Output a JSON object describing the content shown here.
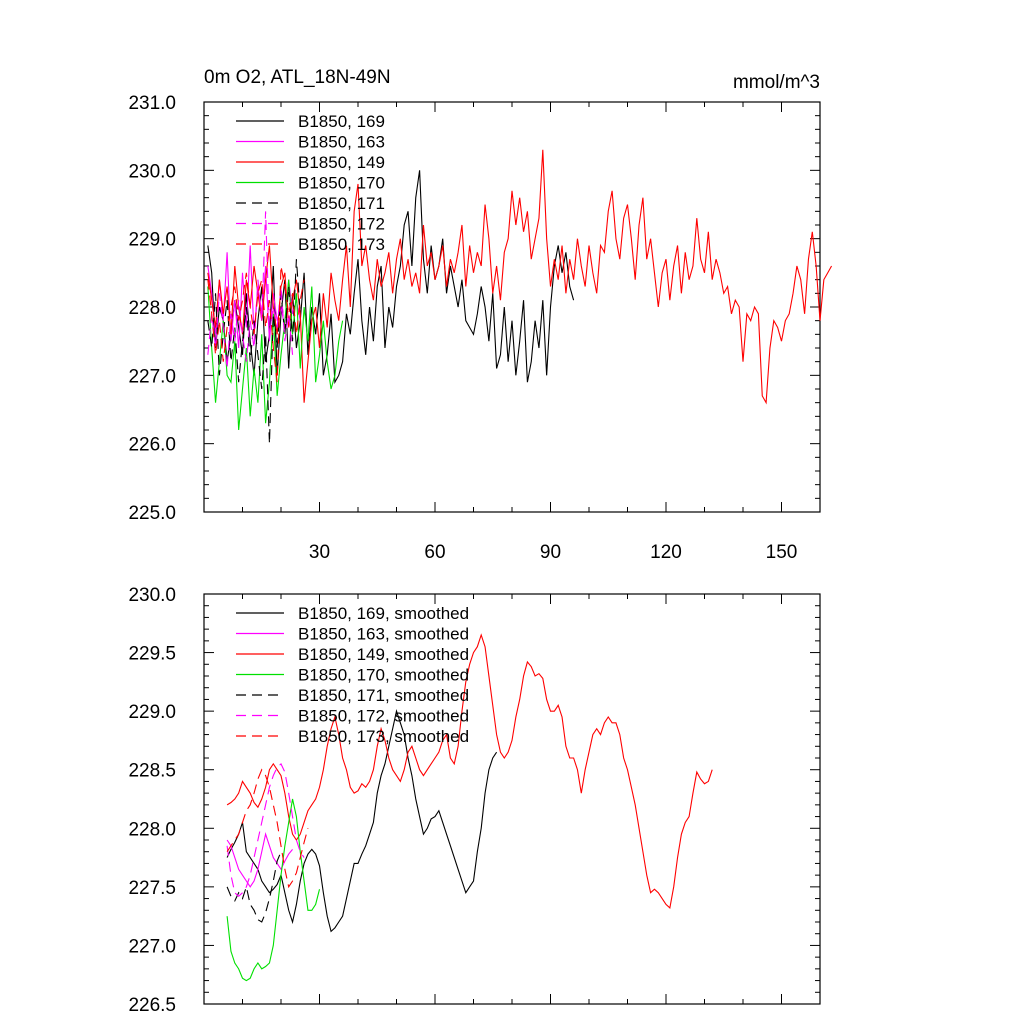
{
  "chart_data": [
    {
      "type": "line",
      "title": "0m O2, ATL_18N-49N",
      "unit_label": "mmol/m^3",
      "xlim": [
        0,
        160
      ],
      "ylim": [
        225.0,
        231.0
      ],
      "x_ticks": [
        30,
        60,
        90,
        120,
        150
      ],
      "x_tick_labels": [
        "30",
        "60",
        "90",
        "120",
        "150"
      ],
      "y_ticks": [
        225.0,
        226.0,
        227.0,
        228.0,
        229.0,
        230.0,
        231.0
      ],
      "y_tick_labels": [
        "225.0",
        "226.0",
        "227.0",
        "228.0",
        "229.0",
        "230.0",
        "231.0"
      ],
      "legend_position": "top-left",
      "series": [
        {
          "name": "B1850, 169",
          "color": "#000000",
          "dash": "solid",
          "x_start": 0,
          "values": [
            228.9,
            228.5,
            227.4,
            228.0,
            227.8,
            227.2,
            227.6,
            228.1,
            227.7,
            227.3,
            228.2,
            227.5,
            227.0,
            227.8,
            228.3,
            227.2,
            227.6,
            228.6,
            227.0,
            227.9,
            228.4,
            227.1,
            228.2,
            227.4,
            227.8,
            228.5,
            227.3,
            228.0,
            227.6,
            228.2,
            227.0,
            227.3,
            227.9,
            226.9,
            227.0,
            227.2,
            227.9,
            227.6,
            228.2,
            228.7,
            227.8,
            227.3,
            228.0,
            227.5,
            228.3,
            228.6,
            227.4,
            228.0,
            227.7,
            228.3,
            228.6,
            229.2,
            229.4,
            228.6,
            229.6,
            230.0,
            228.7,
            228.2,
            228.9,
            228.4,
            228.6,
            229.0,
            228.2,
            228.6,
            228.3,
            228.0,
            228.4,
            227.8,
            227.7,
            227.6,
            227.9,
            228.3,
            228.0,
            227.5,
            228.2,
            227.1,
            227.3,
            228.0,
            227.2,
            227.8,
            227.0,
            227.5,
            228.1,
            226.9,
            227.2,
            227.8,
            227.4,
            228.1,
            227.0,
            228.0,
            228.6,
            228.9,
            228.5,
            228.8,
            228.3,
            228.1
          ]
        },
        {
          "name": "B1850, 163",
          "color": "#ff00ff",
          "dash": "solid",
          "x_start": 0,
          "values": [
            228.6,
            228.2,
            227.6,
            228.4,
            227.8,
            228.8,
            227.5,
            228.1,
            227.4,
            228.5,
            227.7,
            228.9,
            227.6,
            228.3,
            227.9,
            228.6,
            227.5,
            228.2,
            227.8,
            228.0,
            227.7,
            228.4,
            227.9,
            228.1,
            227.8
          ]
        },
        {
          "name": "B1850, 149",
          "color": "#ff0000",
          "dash": "solid",
          "x_start": 0,
          "values": [
            228.5,
            228.1,
            227.7,
            228.4,
            227.9,
            228.3,
            227.6,
            228.6,
            228.0,
            227.6,
            228.4,
            228.0,
            228.6,
            228.2,
            227.8,
            228.4,
            228.9,
            228.0,
            227.6,
            228.3,
            228.5,
            227.7,
            228.1,
            228.4,
            227.9,
            226.6,
            227.2,
            227.8,
            228.0,
            227.4,
            228.2,
            227.7,
            228.5,
            228.1,
            227.8,
            228.4,
            228.9,
            228.0,
            229.4,
            229.8,
            228.6,
            228.9,
            228.4,
            228.1,
            228.7,
            228.3,
            228.5,
            228.8,
            228.2,
            228.7,
            229.0,
            228.4,
            228.7,
            228.3,
            228.5,
            228.2,
            229.2,
            228.6,
            228.8,
            228.4,
            228.6,
            228.9,
            228.3,
            228.7,
            228.5,
            228.8,
            229.2,
            228.3,
            228.9,
            228.5,
            228.8,
            228.6,
            229.5,
            229.0,
            228.2,
            228.6,
            228.1,
            228.8,
            229.0,
            229.7,
            229.2,
            229.6,
            229.1,
            229.4,
            228.7,
            229.0,
            229.3,
            230.3,
            229.0,
            228.3,
            228.7,
            228.4,
            228.9,
            228.2,
            228.7,
            228.4,
            229.0,
            228.6,
            228.3,
            228.9,
            228.5,
            228.2,
            228.9,
            228.8,
            229.4,
            229.7,
            229.0,
            228.7,
            229.3,
            229.5,
            229.0,
            228.4,
            229.2,
            229.6,
            228.7,
            229.0,
            228.5,
            228.0,
            228.5,
            228.7,
            228.1,
            228.6,
            228.9,
            228.2,
            228.8,
            228.4,
            228.6,
            229.3,
            228.7,
            228.5,
            229.1,
            228.4,
            228.7,
            228.5,
            228.2,
            228.3,
            227.9,
            228.1,
            228.0,
            227.2,
            227.9,
            227.8,
            228.0,
            227.9,
            226.7,
            226.6,
            227.4,
            227.8,
            227.7,
            227.5,
            227.8,
            227.9,
            228.2,
            228.6,
            228.4,
            227.9,
            228.7,
            229.1,
            228.6,
            227.8,
            228.4,
            228.5,
            228.6
          ]
        },
        {
          "name": "B1850, 170",
          "color": "#00e000",
          "dash": "solid",
          "x_start": 0,
          "values": [
            228.3,
            227.4,
            226.6,
            227.2,
            227.8,
            227.0,
            226.9,
            227.5,
            226.2,
            226.8,
            227.4,
            226.4,
            227.1,
            226.6,
            227.6,
            226.3,
            226.9,
            227.9,
            226.7,
            227.3,
            227.8,
            228.4,
            227.6,
            228.2,
            227.1,
            228.0,
            227.5,
            228.3,
            226.9,
            227.3,
            227.8,
            227.2,
            226.8,
            227.0,
            227.5,
            227.8
          ]
        },
        {
          "name": "B1850, 171",
          "color": "#000000",
          "dash": "dashed",
          "x_start": 0,
          "values": [
            227.8,
            227.4,
            228.2,
            227.0,
            227.6,
            228.1,
            227.2,
            227.7,
            226.9,
            227.5,
            228.0,
            227.2,
            227.8,
            227.3,
            226.8,
            227.6,
            226.0,
            227.9,
            227.4,
            228.2,
            227.6,
            228.3,
            227.5,
            228.7,
            227.9
          ]
        },
        {
          "name": "B1850, 172",
          "color": "#ff00ff",
          "dash": "dashed",
          "x_start": 0,
          "values": [
            227.3,
            227.9,
            227.4,
            228.2,
            227.7,
            227.1,
            227.9,
            227.5,
            228.1,
            227.6,
            227.2,
            227.8,
            227.4,
            228.4,
            227.8,
            229.4,
            227.6,
            228.0,
            227.7,
            228.3,
            227.5,
            227.9,
            227.3
          ]
        },
        {
          "name": "B1850, 173",
          "color": "#ff0000",
          "dash": "dashed",
          "x_start": 0,
          "values": [
            228.4,
            227.9,
            227.3,
            227.8,
            227.2,
            227.7,
            228.0,
            228.3,
            227.8,
            228.1,
            228.5,
            228.0,
            227.6,
            228.2,
            228.4,
            227.7,
            228.1,
            227.4,
            226.9,
            228.6,
            228.3,
            227.9,
            228.2,
            227.6,
            228.1,
            228.4
          ]
        }
      ]
    },
    {
      "type": "line",
      "title": "",
      "xlim": [
        0,
        160
      ],
      "ylim": [
        226.5,
        230.0
      ],
      "x_ticks": [
        30,
        60,
        90,
        120,
        150
      ],
      "y_ticks": [
        226.5,
        227.0,
        227.5,
        228.0,
        228.5,
        229.0,
        229.5,
        230.0
      ],
      "y_tick_labels": [
        "226.5",
        "227.0",
        "227.5",
        "228.0",
        "228.5",
        "229.0",
        "229.5",
        "230.0"
      ],
      "legend_position": "top-left",
      "series": [
        {
          "name": "B1850, 169, smoothed",
          "color": "#000000",
          "dash": "solid",
          "x_start": 5,
          "values": [
            227.75,
            227.82,
            227.88,
            227.95,
            228.05,
            227.8,
            227.75,
            227.7,
            227.65,
            227.55,
            227.5,
            227.45,
            227.48,
            227.52,
            227.6,
            227.45,
            227.3,
            227.2,
            227.35,
            227.55,
            227.7,
            227.78,
            227.82,
            227.78,
            227.68,
            227.45,
            227.25,
            227.12,
            227.15,
            227.2,
            227.25,
            227.4,
            227.55,
            227.7,
            227.7,
            227.78,
            227.85,
            227.95,
            228.05,
            228.3,
            228.45,
            228.55,
            228.7,
            228.85,
            229.0,
            228.9,
            228.8,
            228.6,
            228.45,
            228.25,
            228.1,
            227.95,
            228.0,
            228.08,
            228.1,
            228.15,
            228.05,
            227.95,
            227.85,
            227.75,
            227.65,
            227.55,
            227.45,
            227.5,
            227.55,
            227.8,
            228.0,
            228.3,
            228.5,
            228.6,
            228.65
          ]
        },
        {
          "name": "B1850, 163, smoothed",
          "color": "#ff00ff",
          "dash": "solid",
          "x_start": 5,
          "values": [
            227.9,
            227.85,
            227.75,
            227.65,
            227.6,
            227.55,
            227.5,
            227.55,
            227.65,
            227.8,
            227.95,
            227.85,
            227.75,
            227.7,
            227.65,
            227.72,
            227.78,
            227.82
          ]
        },
        {
          "name": "B1850, 149, smoothed",
          "color": "#ff0000",
          "dash": "solid",
          "x_start": 5,
          "values": [
            228.2,
            228.22,
            228.25,
            228.3,
            228.4,
            228.35,
            228.3,
            228.22,
            228.18,
            228.25,
            228.35,
            228.5,
            228.55,
            228.5,
            228.45,
            228.3,
            228.1,
            227.95,
            227.9,
            227.95,
            228.05,
            228.15,
            228.2,
            228.25,
            228.35,
            228.5,
            228.7,
            228.85,
            228.95,
            228.8,
            228.6,
            228.5,
            228.35,
            228.3,
            228.32,
            228.38,
            228.35,
            228.4,
            228.5,
            228.7,
            228.85,
            228.75,
            228.6,
            228.5,
            228.45,
            228.4,
            228.5,
            228.65,
            228.7,
            228.6,
            228.5,
            228.45,
            228.5,
            228.55,
            228.6,
            228.65,
            228.75,
            228.8,
            228.6,
            228.55,
            228.7,
            229.0,
            229.25,
            229.4,
            229.5,
            229.55,
            229.65,
            229.55,
            229.3,
            229.05,
            228.8,
            228.65,
            228.6,
            228.65,
            228.75,
            228.95,
            229.1,
            229.3,
            229.42,
            229.38,
            229.3,
            229.32,
            229.28,
            229.1,
            229.0,
            229.0,
            229.05,
            228.95,
            228.7,
            228.6,
            228.6,
            228.5,
            228.3,
            228.5,
            228.65,
            228.8,
            228.85,
            228.8,
            228.9,
            228.95,
            228.9,
            228.9,
            228.8,
            228.6,
            228.5,
            228.35,
            228.2,
            228.0,
            227.8,
            227.6,
            227.45,
            227.48,
            227.45,
            227.4,
            227.35,
            227.32,
            227.5,
            227.75,
            227.95,
            228.05,
            228.1,
            228.3,
            228.48,
            228.42,
            228.38,
            228.4,
            228.5
          ]
        },
        {
          "name": "B1850, 170, smoothed",
          "color": "#00e000",
          "dash": "solid",
          "x_start": 5,
          "values": [
            227.25,
            226.95,
            226.85,
            226.8,
            226.72,
            226.7,
            226.72,
            226.8,
            226.85,
            226.8,
            226.82,
            226.85,
            227.0,
            227.3,
            227.6,
            227.85,
            228.05,
            228.25,
            228.1,
            227.8,
            227.55,
            227.3,
            227.3,
            227.35,
            227.48
          ]
        },
        {
          "name": "B1850, 171, smoothed",
          "color": "#000000",
          "dash": "dashed",
          "x_start": 5,
          "values": [
            227.5,
            227.42,
            227.38,
            227.45,
            227.4,
            227.5,
            227.35,
            227.3,
            227.22,
            227.2,
            227.28,
            227.4,
            227.55,
            227.72,
            227.8
          ]
        },
        {
          "name": "B1850, 172, smoothed",
          "color": "#ff00ff",
          "dash": "dashed",
          "x_start": 5,
          "values": [
            227.85,
            227.6,
            227.45,
            227.42,
            227.45,
            227.5,
            227.6,
            227.75,
            227.9,
            228.05,
            228.2,
            228.35,
            228.45,
            228.52,
            228.55,
            228.48,
            228.3,
            228.1,
            227.9,
            227.8,
            227.75
          ]
        },
        {
          "name": "B1850, 173, smoothed",
          "color": "#ff0000",
          "dash": "dashed",
          "x_start": 5,
          "values": [
            227.8,
            227.85,
            227.9,
            227.95,
            228.05,
            228.15,
            228.2,
            228.3,
            228.42,
            228.5,
            228.45,
            228.35,
            228.2,
            228.05,
            227.85,
            227.65,
            227.5,
            227.55,
            227.62,
            227.75,
            227.88,
            228.0
          ]
        }
      ]
    }
  ]
}
